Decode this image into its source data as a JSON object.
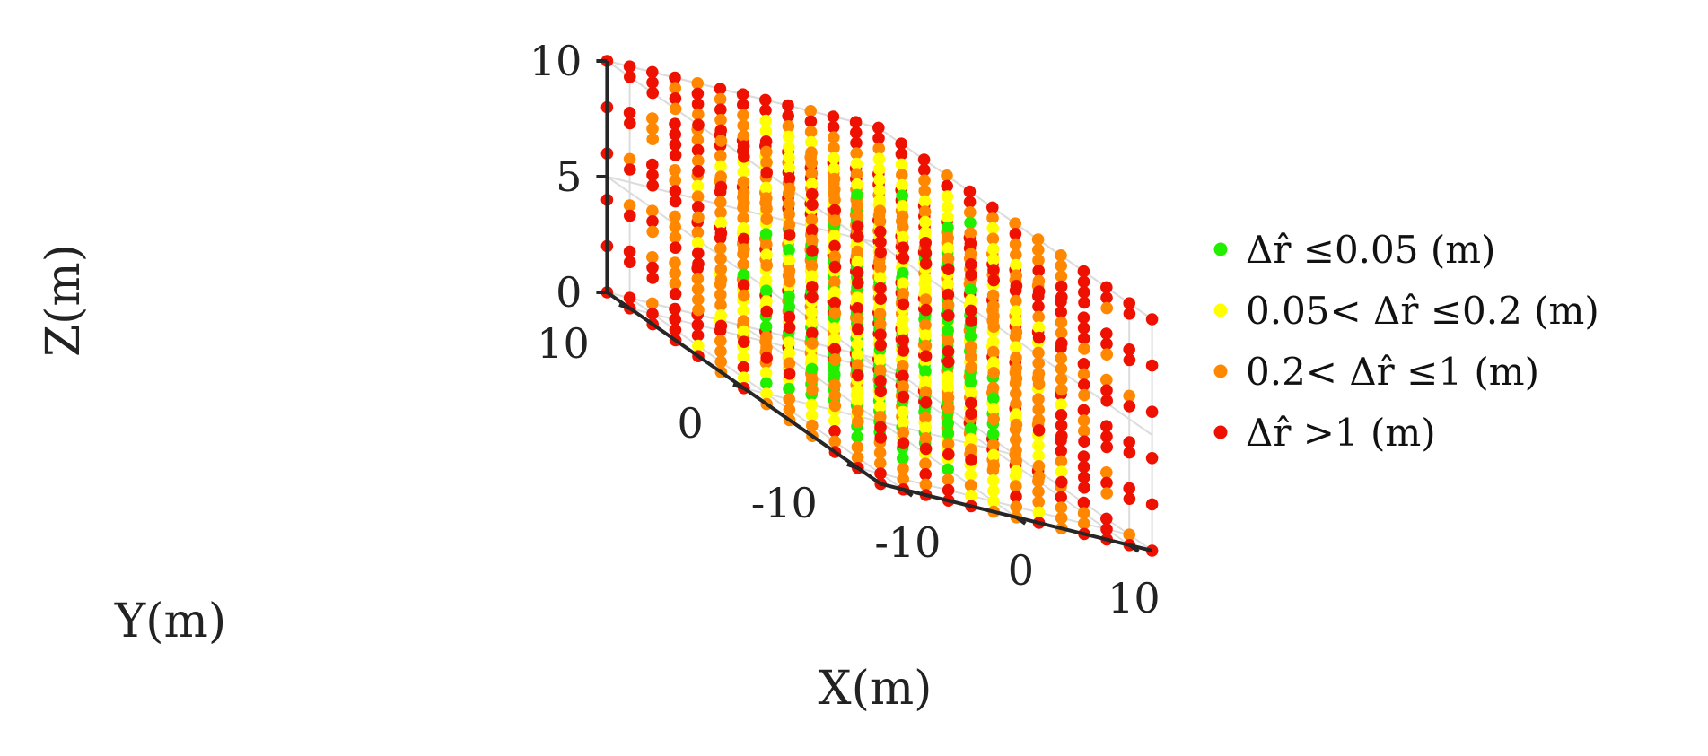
{
  "chart_data": {
    "type": "scatter",
    "title": "",
    "xlabel": "X(m)",
    "ylabel": "Y(m)",
    "zlabel": "Z(m)",
    "xlim": [
      -12,
      12
    ],
    "ylim": [
      -12,
      12
    ],
    "zlim": [
      0,
      10
    ],
    "xticks": [
      {
        "value": -10,
        "label": "-10"
      },
      {
        "value": 0,
        "label": "0"
      },
      {
        "value": 10,
        "label": "10"
      }
    ],
    "yticks": [
      {
        "value": -10,
        "label": "-10"
      },
      {
        "value": 0,
        "label": "0"
      },
      {
        "value": 10,
        "label": "10"
      }
    ],
    "zticks": [
      {
        "value": 0,
        "label": "0"
      },
      {
        "value": 5,
        "label": "5"
      },
      {
        "value": 10,
        "label": "10"
      }
    ],
    "grid": true,
    "legend_position": "right",
    "grid_points": {
      "x_range": [
        -12,
        12
      ],
      "y_range": [
        -12,
        12
      ],
      "z_range": [
        0,
        10
      ],
      "step": 2
    },
    "series": [
      {
        "name": "Δr̂ ≤0.05 (m)",
        "color": "#22ee00"
      },
      {
        "name": "0.05< Δr̂ ≤0.2 (m)",
        "color": "#ffff00"
      },
      {
        "name": "0.2< Δr̂ ≤1 (m)",
        "color": "#ff8800"
      },
      {
        "name": "Δr̂ >1 (m)",
        "color": "#ee1100"
      }
    ]
  }
}
